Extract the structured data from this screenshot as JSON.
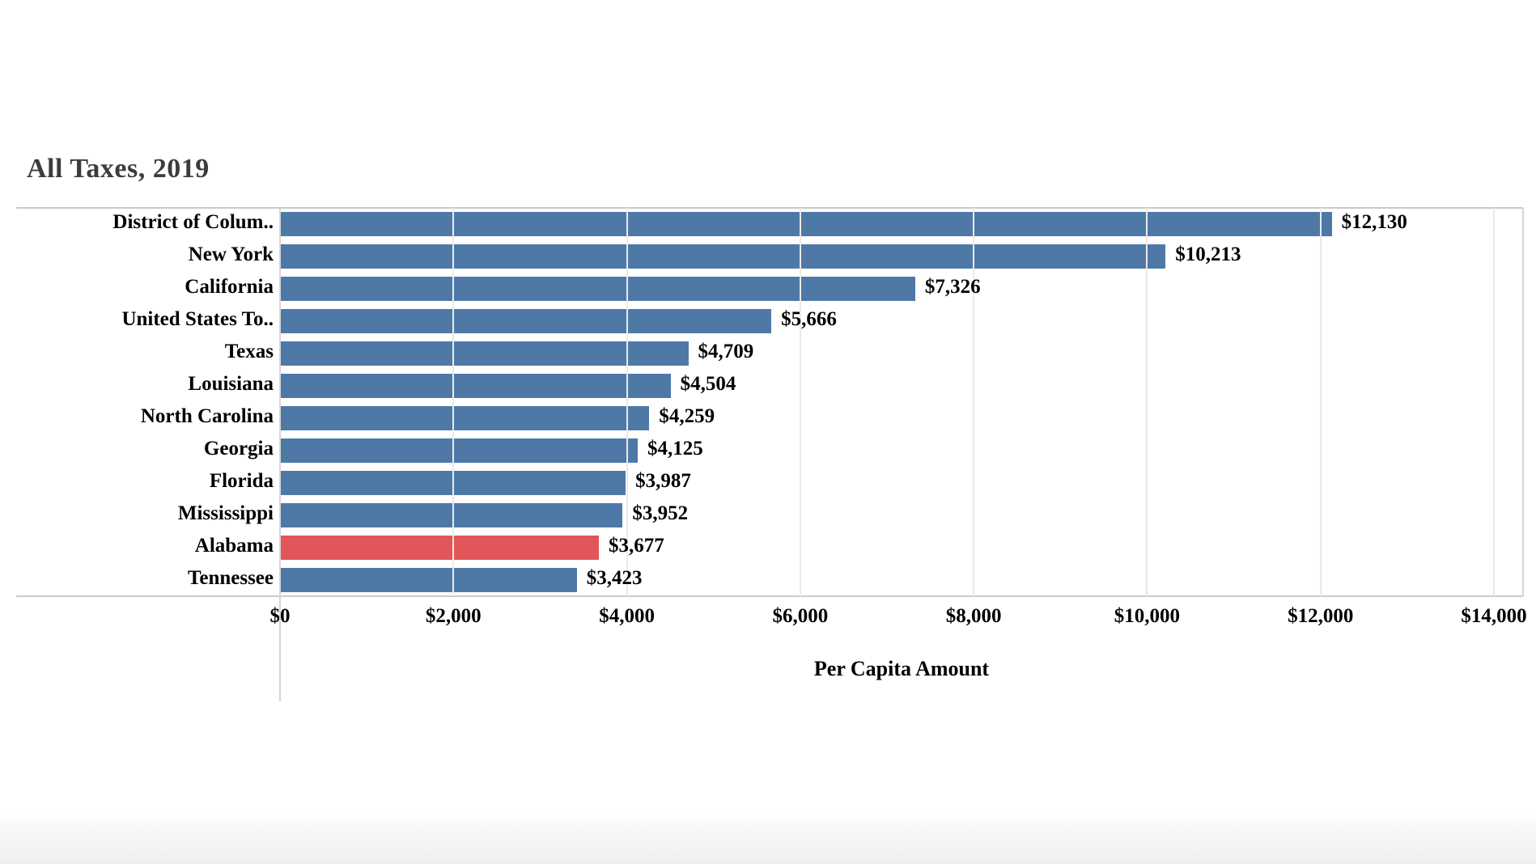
{
  "page": {
    "title": "All Taxes, 2019"
  },
  "chart_data": {
    "type": "bar",
    "orientation": "horizontal",
    "title": "All Taxes, 2019",
    "xlabel": "Per Capita Amount",
    "ylabel": "",
    "categories": [
      "District of Colum..",
      "New York",
      "California",
      "United States To..",
      "Texas",
      "Louisiana",
      "North Carolina",
      "Georgia",
      "Florida",
      "Mississippi",
      "Alabama",
      "Tennessee"
    ],
    "values": [
      12130,
      10213,
      7326,
      5666,
      4709,
      4504,
      4259,
      4125,
      3987,
      3952,
      3677,
      3423
    ],
    "value_labels": [
      "$12,130",
      "$10,213",
      "$7,326",
      "$5,666",
      "$4,709",
      "$4,504",
      "$4,259",
      "$4,125",
      "$3,987",
      "$3,952",
      "$3,677",
      "$3,423"
    ],
    "highlight_index": 10,
    "highlight_category": "Alabama",
    "x_ticks": [
      0,
      2000,
      4000,
      6000,
      8000,
      10000,
      12000,
      14000
    ],
    "x_tick_labels": [
      "$0",
      "$2,000",
      "$4,000",
      "$6,000",
      "$8,000",
      "$10,000",
      "$12,000",
      "$14,000"
    ],
    "xlim": [
      0,
      14336
    ],
    "grid": true,
    "legend": "none",
    "colors": {
      "bar": "#4e79a7",
      "highlight": "#e15759",
      "gridline": "#eaeaea",
      "axis_line": "#cbcbcb",
      "zero_line": "#d6d6d6",
      "title_text": "#3c3c3c",
      "label_text": "#000000"
    }
  }
}
